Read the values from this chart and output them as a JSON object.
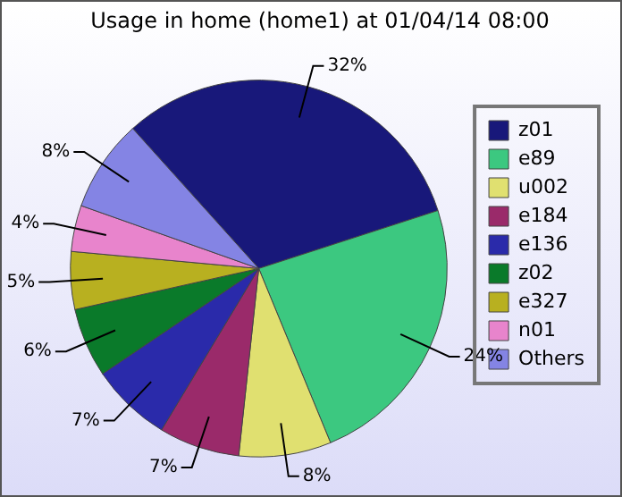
{
  "chart_data": {
    "type": "pie",
    "title": "Usage in home (home1) at 01/04/14 08:00",
    "categories": [
      "z01",
      "e89",
      "u002",
      "e184",
      "e136",
      "z02",
      "e327",
      "n01",
      "Others"
    ],
    "values": [
      32,
      24,
      8,
      7,
      7,
      6,
      5,
      4,
      8
    ],
    "value_labels": [
      "32%",
      "24%",
      "8%",
      "7%",
      "7%",
      "6%",
      "5%",
      "4%",
      "8%"
    ],
    "colors": [
      "#18187a",
      "#3cc880",
      "#e0e070",
      "#9a2a6a",
      "#2a2aaa",
      "#0a7a2a",
      "#b8b020",
      "#e884cc",
      "#8484e4"
    ],
    "legend": "right"
  }
}
